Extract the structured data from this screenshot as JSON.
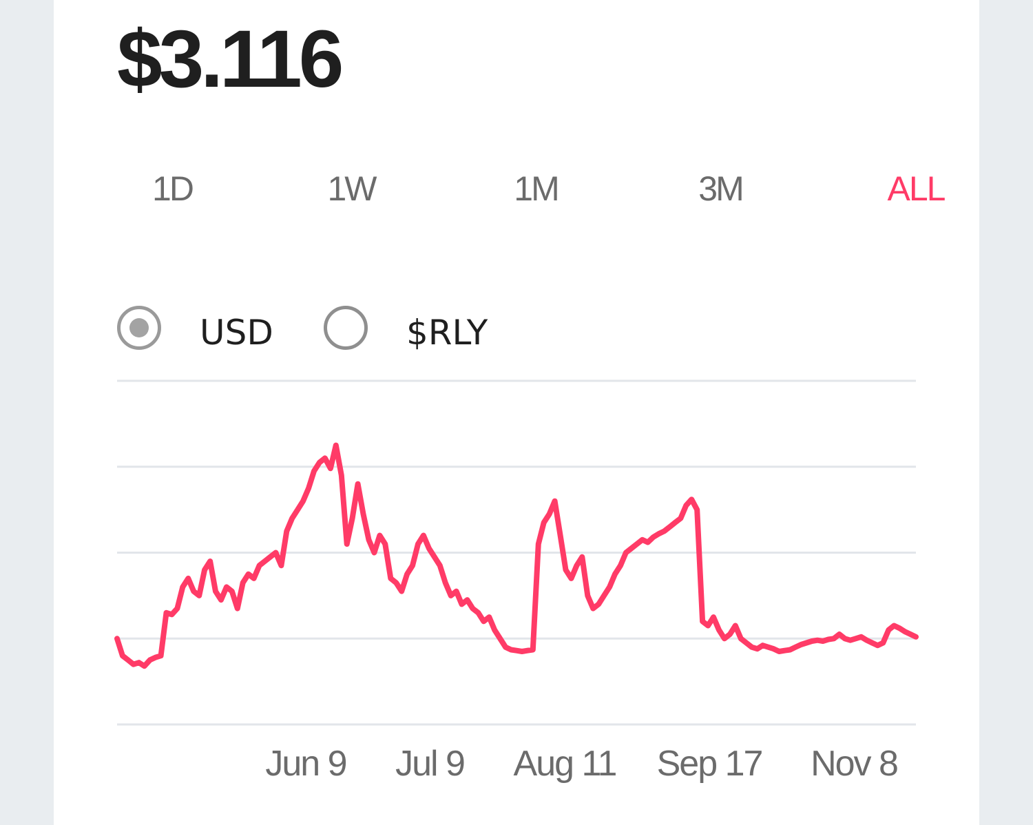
{
  "price": "$3.116",
  "range_tabs": [
    {
      "label": "1D",
      "active": false
    },
    {
      "label": "1W",
      "active": false
    },
    {
      "label": "1M",
      "active": false
    },
    {
      "label": "3M",
      "active": false
    },
    {
      "label": "ALL",
      "active": true
    }
  ],
  "currency_toggle": {
    "options": [
      {
        "label": "USD",
        "selected": true
      },
      {
        "label": "$RLY",
        "selected": false
      }
    ]
  },
  "colors": {
    "accent": "#ff3b67",
    "line": "#ff3b67",
    "text_primary": "#1f1f1f",
    "text_muted": "#6b6b6b",
    "gridline": "#e2e5ea",
    "background": "#e9edf0"
  },
  "chart_data": {
    "type": "line",
    "title": "",
    "xlabel": "",
    "ylabel": "",
    "grid": true,
    "x_tick_labels": [
      "Jun 9",
      "Jul 9",
      "Aug 11",
      "Sep 17",
      "Nov 8"
    ],
    "ylim": [
      0,
      4
    ],
    "series": [
      {
        "values": [
          1.0,
          0.8,
          0.75,
          0.7,
          0.72,
          0.68,
          0.75,
          0.78,
          0.8,
          1.3,
          1.28,
          1.35,
          1.6,
          1.7,
          1.55,
          1.5,
          1.8,
          1.9,
          1.55,
          1.45,
          1.6,
          1.55,
          1.35,
          1.65,
          1.75,
          1.7,
          1.85,
          1.9,
          1.95,
          2.0,
          1.85,
          2.25,
          2.4,
          2.5,
          2.6,
          2.75,
          2.95,
          3.05,
          3.1,
          2.98,
          3.25,
          2.9,
          2.1,
          2.4,
          2.8,
          2.45,
          2.15,
          2.0,
          2.2,
          2.1,
          1.7,
          1.65,
          1.55,
          1.75,
          1.85,
          2.1,
          2.2,
          2.05,
          1.95,
          1.85,
          1.65,
          1.5,
          1.55,
          1.4,
          1.45,
          1.35,
          1.3,
          1.2,
          1.25,
          1.1,
          1.0,
          0.9,
          0.87,
          0.86,
          0.85,
          0.86,
          0.87,
          2.1,
          2.35,
          2.45,
          2.6,
          2.2,
          1.8,
          1.7,
          1.85,
          1.95,
          1.5,
          1.35,
          1.4,
          1.5,
          1.6,
          1.75,
          1.85,
          2.0,
          2.05,
          2.1,
          2.15,
          2.12,
          2.18,
          2.22,
          2.25,
          2.3,
          2.35,
          2.4,
          2.55,
          2.62,
          2.5,
          1.2,
          1.15,
          1.25,
          1.1,
          1.0,
          1.05,
          1.15,
          1.0,
          0.95,
          0.9,
          0.88,
          0.92,
          0.9,
          0.88,
          0.85,
          0.86,
          0.87,
          0.9,
          0.93,
          0.95,
          0.97,
          0.98,
          0.97,
          0.99,
          1.0,
          1.05,
          1.0,
          0.98,
          1.0,
          1.02,
          0.98,
          0.95,
          0.92,
          0.95,
          1.1,
          1.15,
          1.12,
          1.08,
          1.05,
          1.02
        ]
      }
    ]
  }
}
